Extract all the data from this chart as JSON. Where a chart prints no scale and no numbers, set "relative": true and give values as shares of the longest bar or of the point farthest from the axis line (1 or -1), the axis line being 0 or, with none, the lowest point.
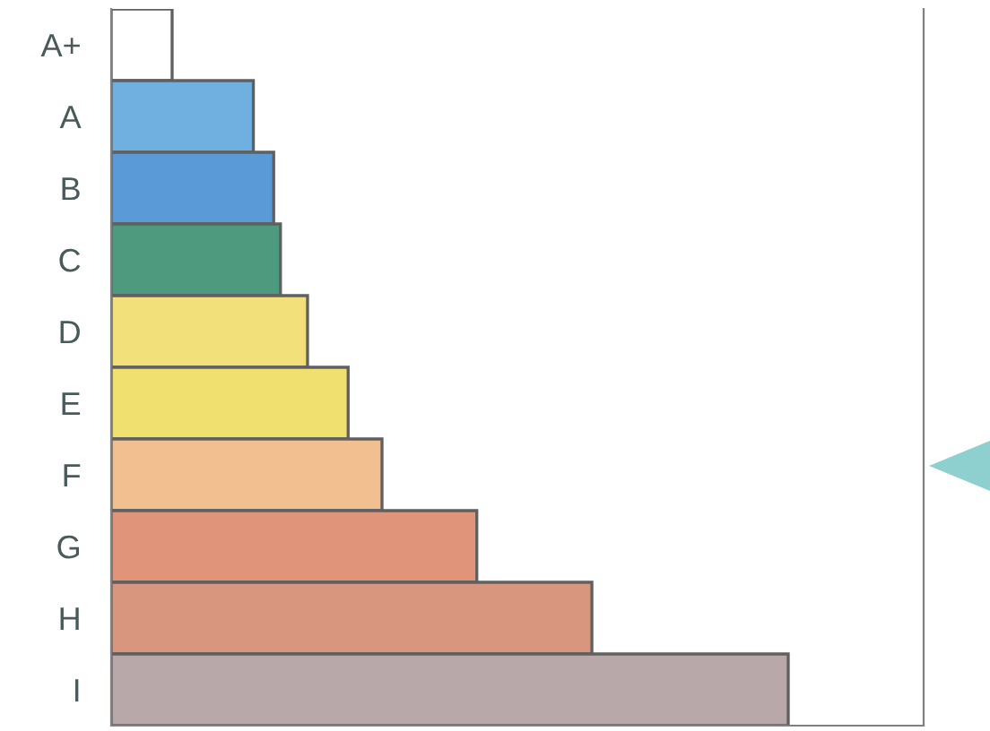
{
  "chart_data": {
    "type": "bar",
    "orientation": "horizontal",
    "relative": true,
    "categories": [
      "A+",
      "A",
      "B",
      "C",
      "D",
      "E",
      "F",
      "G",
      "H",
      "I"
    ],
    "values": [
      0.09,
      0.21,
      0.24,
      0.25,
      0.29,
      0.35,
      0.4,
      0.54,
      0.71,
      1.0
    ],
    "colors": [
      "#ffffff",
      "#6fb0e0",
      "#5a9ad6",
      "#4e9a7e",
      "#f2e07a",
      "#f0e070",
      "#f2c090",
      "#e0957a",
      "#d8967e",
      "#b8a8aa"
    ],
    "grid": false,
    "legend": false
  }
}
